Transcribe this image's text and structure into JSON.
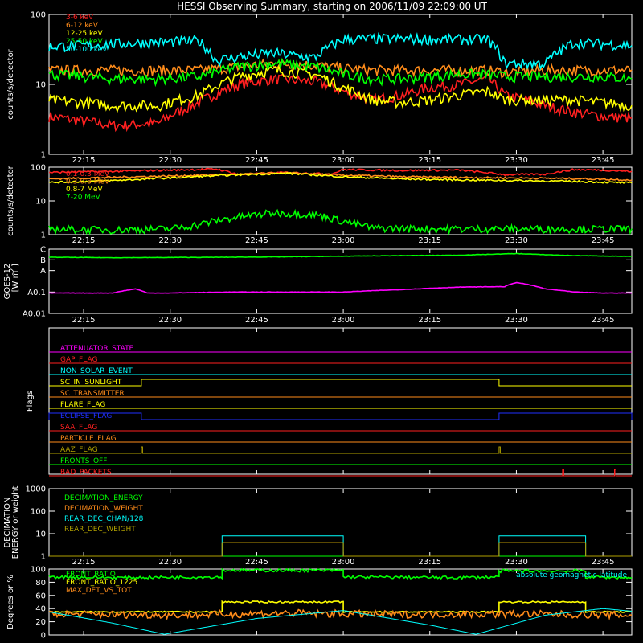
{
  "title": "HESSI Observing Summary, starting on 2006/11/09 22:09:00 UT",
  "time_ticks": [
    "22:15",
    "22:30",
    "22:45",
    "23:00",
    "23:15",
    "23:30",
    "23:45"
  ],
  "colors": {
    "red": "#ff2020",
    "orange": "#ff8c1a",
    "yellow": "#ffff00",
    "green": "#00ff00",
    "cyan": "#00ffff",
    "magenta": "#ff00ff",
    "blue": "#2030ff",
    "olive": "#b0a000",
    "white": "#ffffff"
  },
  "chart_data": [
    {
      "type": "line",
      "ylabel": "counts/s/detector",
      "yscale": "log",
      "ylim": [
        1,
        100
      ],
      "yticks": [
        "1",
        "10",
        "100"
      ],
      "x_range": [
        "22:09",
        "23:50"
      ],
      "series": [
        {
          "name": "3-6 keV",
          "color": "#ff2020",
          "x": [
            "22:09",
            "22:15",
            "22:20",
            "22:28",
            "22:35",
            "22:42",
            "22:48",
            "22:55",
            "23:00",
            "23:05",
            "23:10",
            "23:15",
            "23:20",
            "23:25",
            "23:28",
            "23:35",
            "23:40",
            "23:45",
            "23:50"
          ],
          "y": [
            3.5,
            3.0,
            2.6,
            2.8,
            5.5,
            10,
            12,
            11,
            8,
            6,
            7,
            9,
            10,
            12,
            7,
            5,
            4,
            3.5,
            3.3
          ]
        },
        {
          "name": "6-12 keV",
          "color": "#ff8c1a",
          "x": [
            "22:09",
            "22:15",
            "22:20",
            "22:28",
            "22:35",
            "22:42",
            "22:48",
            "22:55",
            "23:00",
            "23:05",
            "23:10",
            "23:15",
            "23:20",
            "23:25",
            "23:28",
            "23:35",
            "23:40",
            "23:45",
            "23:50"
          ],
          "y": [
            16,
            16,
            16,
            16,
            16,
            18,
            20,
            19,
            17,
            16,
            16,
            16,
            16,
            16,
            15,
            16,
            16,
            16,
            16
          ]
        },
        {
          "name": "12-25 keV",
          "color": "#ffff00",
          "x": [
            "22:09",
            "22:15",
            "22:20",
            "22:28",
            "22:35",
            "22:42",
            "22:48",
            "22:55",
            "23:00",
            "23:05",
            "23:10",
            "23:15",
            "23:20",
            "23:25",
            "23:28",
            "23:35",
            "23:40",
            "23:45",
            "23:50"
          ],
          "y": [
            6,
            5.5,
            5,
            5,
            7,
            13,
            16,
            14,
            9,
            6,
            5.5,
            6,
            7,
            8,
            6,
            6,
            6,
            5.5,
            5
          ]
        },
        {
          "name": "25-50 keV",
          "color": "#00ff00",
          "x": [
            "22:09",
            "22:15",
            "22:20",
            "22:28",
            "22:35",
            "22:42",
            "22:48",
            "22:55",
            "23:00",
            "23:05",
            "23:10",
            "23:15",
            "23:20",
            "23:25",
            "23:28",
            "23:35",
            "23:40",
            "23:45",
            "23:50"
          ],
          "y": [
            14,
            13,
            12,
            12,
            13,
            18,
            20,
            18,
            14,
            12,
            12,
            13,
            14,
            14,
            13,
            13,
            13,
            13,
            12
          ]
        },
        {
          "name": "50-100 keV",
          "color": "#00ffff",
          "x": [
            "22:09",
            "22:15",
            "22:20",
            "22:28",
            "22:35",
            "22:38",
            "22:42",
            "22:48",
            "22:55",
            "23:00",
            "23:05",
            "23:10",
            "23:15",
            "23:20",
            "23:25",
            "23:28",
            "23:35",
            "23:40",
            "23:45",
            "23:50"
          ],
          "y": [
            35,
            36,
            38,
            40,
            42,
            22,
            25,
            28,
            24,
            44,
            45,
            45,
            44,
            44,
            44,
            20,
            20,
            40,
            38,
            36
          ]
        }
      ]
    },
    {
      "type": "line",
      "ylabel": "counts/s/detector",
      "yscale": "log",
      "ylim": [
        1,
        100
      ],
      "yticks": [
        "1",
        "10",
        "100"
      ],
      "x_range": [
        "22:09",
        "23:50"
      ],
      "series": [
        {
          "name": "0.1-0.3 MeV",
          "color": "#ff2020",
          "x": [
            "22:09",
            "22:20",
            "22:30",
            "22:38",
            "22:42",
            "22:50",
            "22:58",
            "23:00",
            "23:10",
            "23:20",
            "23:28",
            "23:35",
            "23:40",
            "23:45",
            "23:50"
          ],
          "y": [
            70,
            75,
            82,
            88,
            60,
            70,
            62,
            85,
            80,
            82,
            60,
            62,
            85,
            82,
            75
          ]
        },
        {
          "name": "0.3-0.8 MeV",
          "color": "#ff8c1a",
          "x": [
            "22:09",
            "22:20",
            "22:30",
            "22:40",
            "22:50",
            "23:00",
            "23:10",
            "23:20",
            "23:30",
            "23:40",
            "23:50"
          ],
          "y": [
            45,
            50,
            55,
            60,
            68,
            58,
            52,
            50,
            48,
            46,
            42
          ]
        },
        {
          "name": "0.8-7 MeV",
          "color": "#ffff00",
          "x": [
            "22:09",
            "22:20",
            "22:30",
            "22:40",
            "22:50",
            "23:00",
            "23:10",
            "23:20",
            "23:30",
            "23:40",
            "23:50"
          ],
          "y": [
            35,
            40,
            48,
            58,
            66,
            52,
            45,
            42,
            40,
            38,
            34
          ]
        },
        {
          "name": "7-20 MeV",
          "color": "#00ff00",
          "x": [
            "22:09",
            "22:20",
            "22:30",
            "22:35",
            "22:40",
            "22:48",
            "22:55",
            "23:00",
            "23:05",
            "23:15",
            "23:25",
            "23:35",
            "23:45",
            "23:50"
          ],
          "y": [
            1.5,
            1.4,
            1.5,
            2,
            3,
            4.5,
            4,
            2.5,
            1.6,
            1.5,
            1.5,
            1.5,
            1.5,
            1.5
          ]
        }
      ]
    },
    {
      "type": "line",
      "ylabel": "GOES-12 [W m^-2]",
      "ylabel_parts": [
        "GOES-12",
        "[W m",
        "-2",
        "]"
      ],
      "yscale": "log",
      "ylim": [
        0.01,
        10
      ],
      "yticks": [
        "A0.01",
        "A0.1",
        "A",
        "B",
        "C"
      ],
      "x_range": [
        "22:09",
        "23:50"
      ],
      "series": [
        {
          "name": "",
          "color": "#00ff00",
          "x": [
            "22:09",
            "22:20",
            "22:30",
            "22:40",
            "22:50",
            "23:00",
            "23:10",
            "23:20",
            "23:30",
            "23:35",
            "23:40",
            "23:50"
          ],
          "y": [
            4.2,
            4.0,
            4.1,
            4.2,
            4.4,
            4.7,
            5.0,
            5.2,
            6.2,
            5.5,
            5.0,
            4.6
          ]
        },
        {
          "name": "",
          "color": "#ff00ff",
          "x": [
            "22:09",
            "22:20",
            "22:24",
            "22:26",
            "22:30",
            "22:40",
            "22:50",
            "23:00",
            "23:10",
            "23:20",
            "23:28",
            "23:30",
            "23:35",
            "23:40",
            "23:45",
            "23:50"
          ],
          "y": [
            0.09,
            0.09,
            0.14,
            0.09,
            0.09,
            0.1,
            0.1,
            0.1,
            0.13,
            0.17,
            0.18,
            0.28,
            0.14,
            0.1,
            0.09,
            0.09
          ]
        }
      ]
    },
    {
      "type": "table",
      "ylabel": "Flags",
      "x_range": [
        "22:09",
        "23:50"
      ],
      "flags": [
        {
          "label": "ATTENUATOR_STATE",
          "color": "#ff00ff",
          "high": []
        },
        {
          "label": "GAP_FLAG",
          "color": "#ff2020",
          "high": []
        },
        {
          "label": "NON_SOLAR_EVENT",
          "color": "#00ffff",
          "high": []
        },
        {
          "label": "SC_IN_SUNLIGHT",
          "color": "#ffff00",
          "high": [
            [
              "22:25",
              "23:27"
            ]
          ]
        },
        {
          "label": "SC_TRANSMITTER",
          "color": "#ff8c1a",
          "high": []
        },
        {
          "label": "FLARE_FLAG",
          "color": "#ffff00",
          "high": []
        },
        {
          "label": "ECLIPSE_FLAG",
          "color": "#2030ff",
          "high": [
            [
              "22:09",
              "22:25"
            ],
            [
              "23:27",
              "23:50"
            ]
          ]
        },
        {
          "label": "SAA_FLAG",
          "color": "#ff2020",
          "high": []
        },
        {
          "label": "PARTICLE_FLAG",
          "color": "#ff8c1a",
          "high": []
        },
        {
          "label": "AAZ_FLAG",
          "color": "#b0a000",
          "high": [
            [
              "22:25",
              "22:25"
            ],
            [
              "23:27",
              "23:27"
            ]
          ]
        },
        {
          "label": "FRONTS_OFF",
          "color": "#00ff00",
          "high": []
        },
        {
          "label": "BAD_PACKETS",
          "color": "#ff2020",
          "high": [
            [
              "23:38",
              "23:38"
            ],
            [
              "23:47",
              "23:47"
            ]
          ]
        }
      ]
    },
    {
      "type": "line",
      "ylabel": "DECIMATION ENERGY or weight",
      "ylabel_parts": [
        "DECIMATION",
        "ENERGY or weight"
      ],
      "yscale": "log",
      "ylim": [
        1,
        1000
      ],
      "yticks": [
        "1",
        "10",
        "100",
        "1000"
      ],
      "x_range": [
        "22:09",
        "23:50"
      ],
      "series": [
        {
          "name": "DECIMATION_ENERGY",
          "color": "#00ff00",
          "x": [
            "22:09",
            "23:50"
          ],
          "y": [
            1,
            1
          ]
        },
        {
          "name": "DECIMATION_WEIGHT",
          "color": "#ff8c1a",
          "x": [
            "22:09",
            "22:39",
            "22:39",
            "23:00",
            "23:00",
            "23:27",
            "23:27",
            "23:42",
            "23:42",
            "23:50"
          ],
          "y": [
            1,
            1,
            4,
            4,
            1,
            1,
            4,
            4,
            1,
            1
          ]
        },
        {
          "name": "REAR_DEC_CHAN/128",
          "color": "#00ffff",
          "x": [
            "22:09",
            "22:39",
            "22:39",
            "23:00",
            "23:00",
            "23:27",
            "23:27",
            "23:42",
            "23:42",
            "23:50"
          ],
          "y": [
            1,
            1,
            8,
            8,
            1,
            1,
            8,
            8,
            1,
            1
          ]
        },
        {
          "name": "REAR_DEC_WEIGHT",
          "color": "#b0a000",
          "x": [
            "22:09",
            "22:39",
            "22:39",
            "23:00",
            "23:00",
            "23:27",
            "23:27",
            "23:42",
            "23:42",
            "23:50"
          ],
          "y": [
            1,
            1,
            4,
            4,
            1,
            1,
            4,
            4,
            1,
            1
          ]
        }
      ]
    },
    {
      "type": "line",
      "ylabel": "Degrees or %",
      "yscale": "linear",
      "ylim": [
        0,
        100
      ],
      "yticks": [
        "0",
        "20",
        "40",
        "60",
        "80",
        "100"
      ],
      "x_range": [
        "22:09",
        "23:50"
      ],
      "series": [
        {
          "name": "FRONT_RATIO",
          "color": "#00ff00",
          "x": [
            "22:09",
            "22:20",
            "22:39",
            "22:39",
            "23:00",
            "23:00",
            "23:20",
            "23:27",
            "23:27",
            "23:42",
            "23:42",
            "23:50"
          ],
          "y": [
            88,
            87,
            88,
            98,
            98,
            88,
            87,
            88,
            97,
            97,
            88,
            87
          ]
        },
        {
          "name": "FRONT_RATIO_1225",
          "color": "#ffff00",
          "x": [
            "22:09",
            "22:39",
            "22:39",
            "23:00",
            "23:00",
            "23:27",
            "23:27",
            "23:42",
            "23:42",
            "23:50"
          ],
          "y": [
            35,
            35,
            50,
            50,
            35,
            35,
            50,
            50,
            35,
            35
          ]
        },
        {
          "name": "MAX_DET_VS_TOT",
          "color": "#ff8c1a",
          "x": [
            "22:09",
            "22:30",
            "22:50",
            "23:10",
            "23:30",
            "23:50"
          ],
          "y": [
            32,
            30,
            33,
            31,
            32,
            30
          ]
        },
        {
          "name": "absolute geomagnetic latitude",
          "color": "#00ffff",
          "x": [
            "22:09",
            "22:20",
            "22:29",
            "22:45",
            "23:00",
            "23:15",
            "23:23",
            "23:35",
            "23:45",
            "23:50"
          ],
          "y": [
            35,
            18,
            1,
            25,
            37,
            15,
            1,
            30,
            40,
            36
          ]
        }
      ]
    }
  ]
}
